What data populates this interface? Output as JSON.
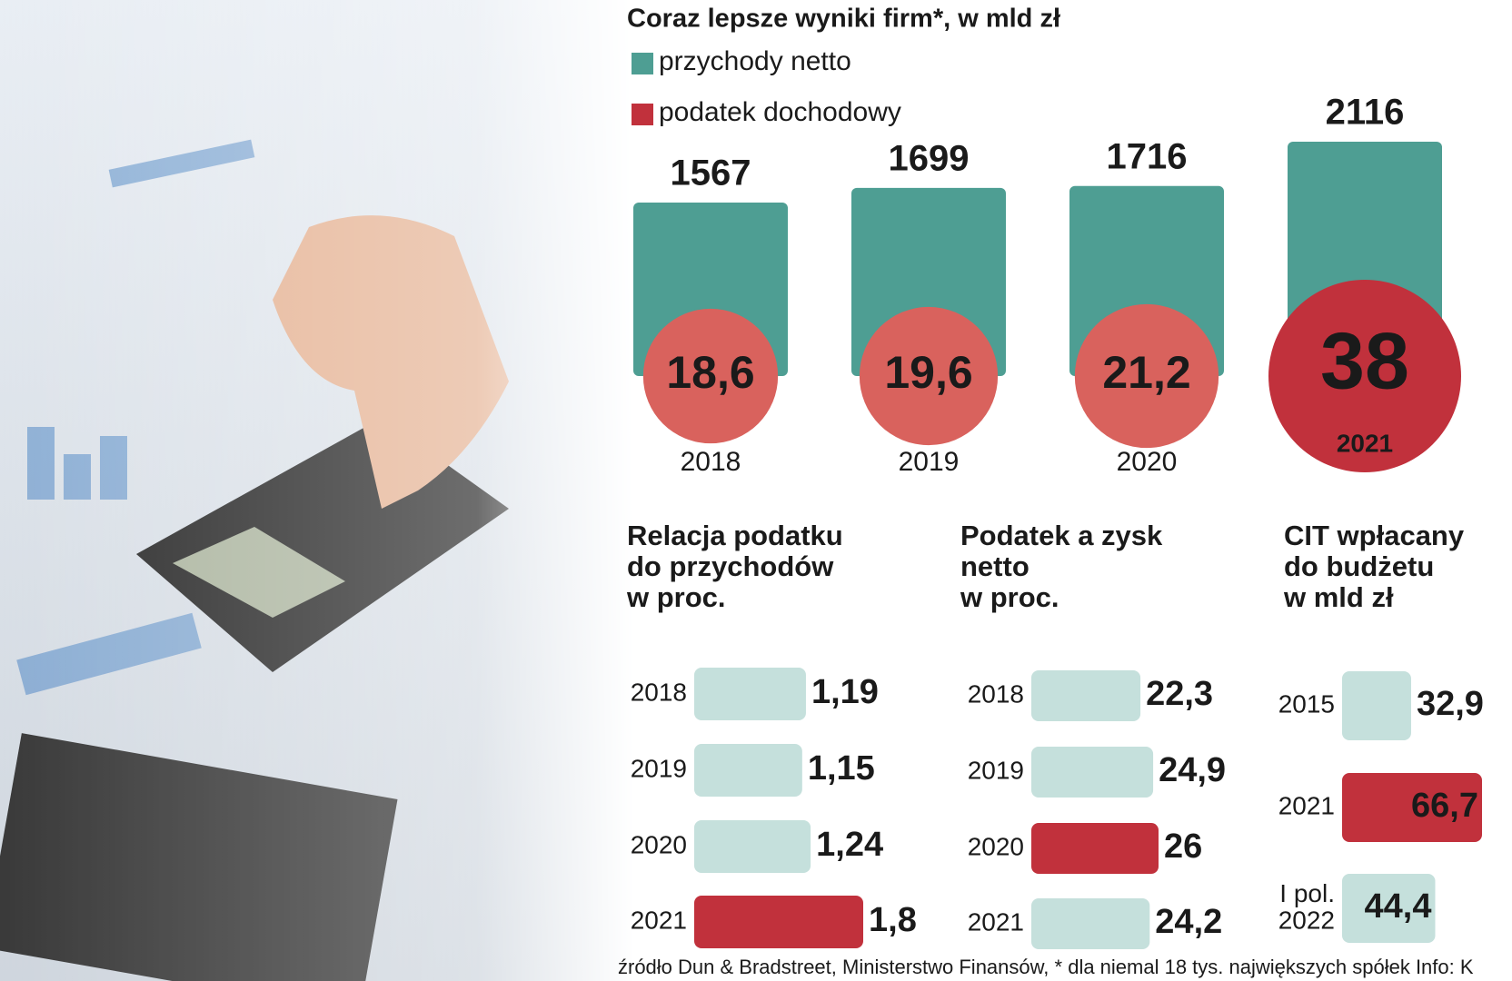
{
  "chart_data": [
    {
      "type": "bar-bubble",
      "title": "Coraz lepsze wyniki firm*, w mld zł",
      "categories": [
        "2018",
        "2019",
        "2020",
        "2021"
      ],
      "series": [
        {
          "name": "przychody netto",
          "color": "#4e9e93",
          "values": [
            1567,
            1699,
            1716,
            2116
          ]
        },
        {
          "name": "podatek dochodowy",
          "color": "#c1313c",
          "colors": [
            "#d9625d",
            "#d9625d",
            "#d9625d",
            "#c1313c"
          ],
          "values": [
            18.6,
            19.6,
            21.2,
            38
          ],
          "value_labels": [
            "18,6",
            "19,6",
            "21,2",
            "38"
          ]
        }
      ]
    },
    {
      "type": "hbar",
      "title": [
        "Relacja podatku",
        "do przychodów",
        "w proc."
      ],
      "categories": [
        "2018",
        "2019",
        "2020",
        "2021"
      ],
      "values": [
        1.19,
        1.15,
        1.24,
        1.8
      ],
      "value_labels": [
        "1,19",
        "1,15",
        "1,24",
        "1,8"
      ],
      "colors": [
        "#c5e0dc",
        "#c5e0dc",
        "#c5e0dc",
        "#c1313c"
      ]
    },
    {
      "type": "hbar",
      "title": [
        "Podatek a zysk",
        "netto",
        "w proc."
      ],
      "categories": [
        "2018",
        "2019",
        "2020",
        "2021"
      ],
      "values": [
        22.3,
        24.9,
        26,
        24.2
      ],
      "value_labels": [
        "22,3",
        "24,9",
        "26",
        "24,2"
      ],
      "colors": [
        "#c5e0dc",
        "#c5e0dc",
        "#c1313c",
        "#c5e0dc"
      ]
    },
    {
      "type": "hbar",
      "title": [
        "CIT wpłacany",
        "do budżetu",
        "w mld zł"
      ],
      "categories": [
        "2015",
        "2021",
        "I pol.\n2022"
      ],
      "values": [
        32.9,
        66.7,
        44.4
      ],
      "value_labels": [
        "32,9",
        "66,7",
        "44,4"
      ],
      "colors": [
        "#c5e0dc",
        "#c1313c",
        "#c5e0dc"
      ]
    }
  ],
  "source": "źródło Dun & Bradstreet, Ministerstwo Finansów, * dla niemal 18 tys. największych spółek  Info: K"
}
